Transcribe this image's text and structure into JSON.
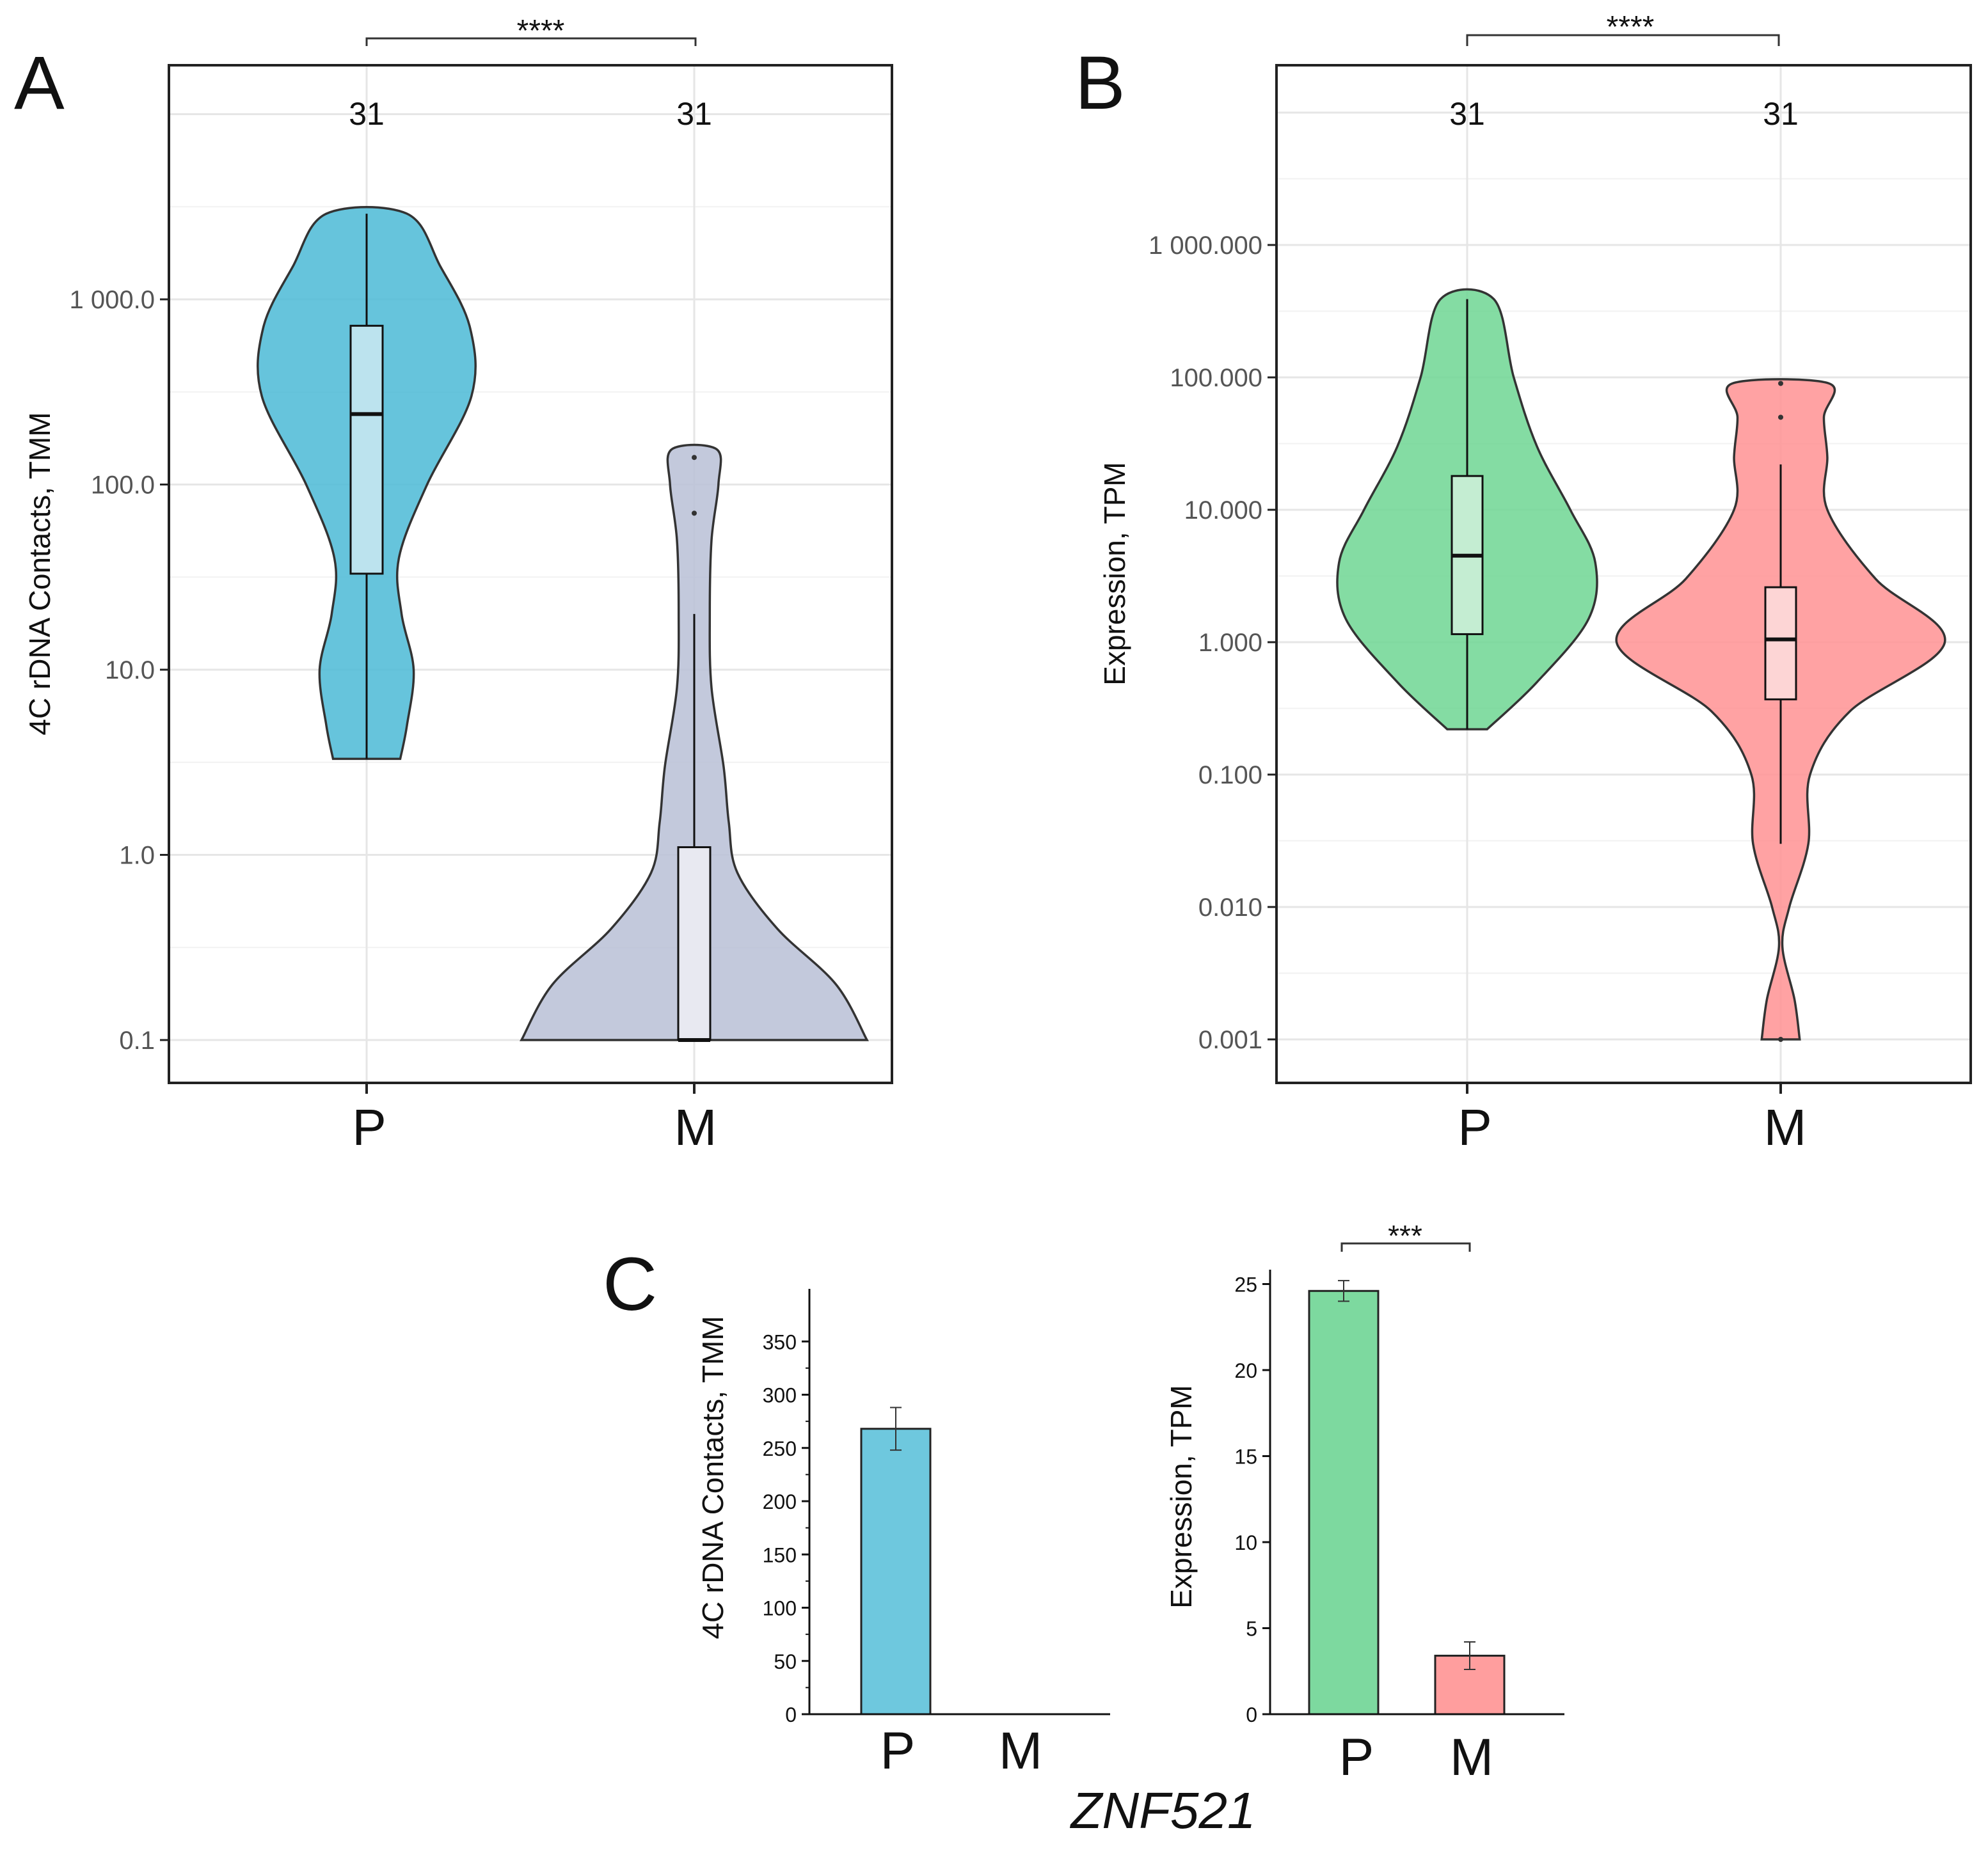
{
  "figure_caption": "ZNF521",
  "chart_data": [
    {
      "id": "A",
      "panel_label": "A",
      "type": "violin",
      "scale": "log10",
      "ylabel": "4C rDNA Contacts, TMM",
      "yticks": [
        0.1,
        1.0,
        10.0,
        100.0,
        1000.0
      ],
      "ytick_labels": [
        "0.1",
        "1.0",
        "10.0",
        "100.0",
        "1 000.0"
      ],
      "categories": [
        "P",
        "M"
      ],
      "counts": [
        "31",
        "31"
      ],
      "significance": "****",
      "grid": true,
      "groups": [
        {
          "name": "P",
          "color": "#4BBAD6",
          "box_color": "#BCE3EE",
          "min": 3.3,
          "q1": 33,
          "median": 240,
          "q3": 720,
          "max": 2900,
          "outliers": [],
          "density": [
            [
              3.3,
              0.25
            ],
            [
              5,
              0.3
            ],
            [
              10,
              0.35
            ],
            [
              20,
              0.26
            ],
            [
              40,
              0.24
            ],
            [
              100,
              0.45
            ],
            [
              300,
              0.78
            ],
            [
              700,
              0.77
            ],
            [
              1500,
              0.55
            ],
            [
              2900,
              0.3
            ]
          ]
        },
        {
          "name": "M",
          "color": "#B9BFD6",
          "box_color": "#E8E9F1",
          "min": 0.1,
          "q1": 0.1,
          "median": 0.1,
          "q3": 1.1,
          "max": 20,
          "outliers": [
            70,
            140
          ],
          "density": [
            [
              0.1,
              1.0
            ],
            [
              0.2,
              0.82
            ],
            [
              0.4,
              0.48
            ],
            [
              0.8,
              0.25
            ],
            [
              1.5,
              0.2
            ],
            [
              3,
              0.17
            ],
            [
              8,
              0.1
            ],
            [
              20,
              0.09
            ],
            [
              50,
              0.1
            ],
            [
              100,
              0.14
            ],
            [
              155,
              0.13
            ]
          ]
        }
      ]
    },
    {
      "id": "B",
      "panel_label": "B",
      "type": "violin",
      "scale": "log10",
      "ylabel": "Expression, TPM",
      "yticks": [
        0.001,
        0.01,
        0.1,
        1.0,
        10.0,
        100.0,
        1000.0
      ],
      "ytick_labels": [
        "0.001",
        "0.010",
        "0.100",
        "1.000",
        "10.000",
        "100.000",
        "1 000.000"
      ],
      "categories": [
        "P",
        "M"
      ],
      "counts": [
        "31",
        "31"
      ],
      "significance": "****",
      "grid": true,
      "groups": [
        {
          "name": "P",
          "color": "#6ED693",
          "box_color": "#C4EDD2",
          "min": 0.22,
          "q1": 1.15,
          "median": 4.5,
          "q3": 18,
          "max": 390,
          "outliers": [],
          "density": [
            [
              0.22,
              0.12
            ],
            [
              0.5,
              0.42
            ],
            [
              1.5,
              0.73
            ],
            [
              4,
              0.77
            ],
            [
              10,
              0.62
            ],
            [
              30,
              0.42
            ],
            [
              100,
              0.28
            ],
            [
              390,
              0.16
            ]
          ]
        },
        {
          "name": "M",
          "color": "#FF9293",
          "box_color": "#FDD5D5",
          "min": 0.03,
          "q1": 0.37,
          "median": 1.05,
          "q3": 2.6,
          "max": 22,
          "outliers": [
            50,
            90,
            0.001
          ],
          "density": [
            [
              0.001,
              0.11
            ],
            [
              0.002,
              0.08
            ],
            [
              0.005,
              0.01
            ],
            [
              0.01,
              0.05
            ],
            [
              0.03,
              0.16
            ],
            [
              0.1,
              0.17
            ],
            [
              0.3,
              0.4
            ],
            [
              1,
              0.95
            ],
            [
              3,
              0.55
            ],
            [
              10,
              0.27
            ],
            [
              25,
              0.27
            ],
            [
              50,
              0.25
            ],
            [
              90,
              0.28
            ]
          ]
        }
      ]
    },
    {
      "id": "C1",
      "panel_label": "C",
      "type": "bar",
      "ylabel": "4C rDNA Contacts, TMM",
      "ylim": [
        0,
        400
      ],
      "yticks": [
        0,
        50,
        100,
        150,
        200,
        250,
        300,
        350
      ],
      "ytick_labels": [
        "0",
        "50",
        "100",
        "150",
        "200",
        "250",
        "300",
        "350"
      ],
      "categories": [
        "P",
        "M"
      ],
      "values": [
        268,
        0
      ],
      "errors": [
        20,
        0
      ],
      "colors": [
        "#6EC8DE",
        "#6EC8DE"
      ],
      "significance": ""
    },
    {
      "id": "C2",
      "type": "bar",
      "ylabel": "Expression, TPM",
      "ylim": [
        0,
        25.6
      ],
      "yticks": [
        0,
        5,
        10,
        15,
        20,
        25
      ],
      "ytick_labels": [
        "0",
        "5",
        "10",
        "15",
        "20",
        "25"
      ],
      "categories": [
        "P",
        "M"
      ],
      "values": [
        24.6,
        3.4
      ],
      "errors": [
        0.6,
        0.8
      ],
      "colors": [
        "#7DD99F",
        "#FF9E9E"
      ],
      "significance": "***"
    }
  ]
}
